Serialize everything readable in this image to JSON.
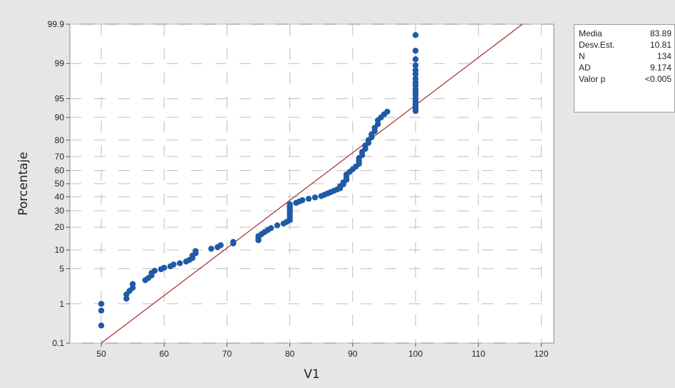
{
  "chart_data": {
    "type": "scatter",
    "subtype": "normal-probability-plot",
    "xlabel": "V1",
    "ylabel": "Porcentaje",
    "xlim": [
      45,
      122
    ],
    "ylim_percent": [
      0.1,
      99.9
    ],
    "y_scale": "normal-probability",
    "x_ticks": [
      50,
      60,
      70,
      80,
      90,
      100,
      110,
      120
    ],
    "y_ticks": [
      0.1,
      1,
      5,
      10,
      20,
      30,
      40,
      50,
      60,
      70,
      80,
      90,
      95,
      99,
      99.9
    ],
    "grid": true,
    "gridline_style": "dashed",
    "marker": "filled-dot",
    "colors": {
      "points": "#1f5aa6",
      "fit_line": "#a52a2a",
      "plot_bg": "#ffffff",
      "page_bg": "#e6e6e6"
    },
    "fit_line": {
      "x": [
        50,
        117
      ],
      "y": [
        0.1,
        99.9
      ]
    },
    "points": [
      [
        50.0,
        0.3
      ],
      [
        50.0,
        0.7
      ],
      [
        50.0,
        1.0
      ],
      [
        54.0,
        1.3
      ],
      [
        54.0,
        1.6
      ],
      [
        54.5,
        1.9
      ],
      [
        55.0,
        2.2
      ],
      [
        55.0,
        2.6
      ],
      [
        57.0,
        3.1
      ],
      [
        57.5,
        3.4
      ],
      [
        58.0,
        3.8
      ],
      [
        58.0,
        4.2
      ],
      [
        58.5,
        4.6
      ],
      [
        59.5,
        4.9
      ],
      [
        60.0,
        5.2
      ],
      [
        61.0,
        5.5
      ],
      [
        61.5,
        5.9
      ],
      [
        62.5,
        6.2
      ],
      [
        63.5,
        6.6
      ],
      [
        64.0,
        7.0
      ],
      [
        64.5,
        7.5
      ],
      [
        64.5,
        8.2
      ],
      [
        65.0,
        8.9
      ],
      [
        65.0,
        9.6
      ],
      [
        67.5,
        10.4
      ],
      [
        68.5,
        11.0
      ],
      [
        69.0,
        11.7
      ],
      [
        71.0,
        12.4
      ],
      [
        71.0,
        13.0
      ],
      [
        75.0,
        13.7
      ],
      [
        75.0,
        14.5
      ],
      [
        75.0,
        15.5
      ],
      [
        75.5,
        16.5
      ],
      [
        76.0,
        17.5
      ],
      [
        76.5,
        18.5
      ],
      [
        77.0,
        19.5
      ],
      [
        78.0,
        21.0
      ],
      [
        79.0,
        22.0
      ],
      [
        79.5,
        23.0
      ],
      [
        80.0,
        24.0
      ],
      [
        80.0,
        25.5
      ],
      [
        80.0,
        27.0
      ],
      [
        80.0,
        28.5
      ],
      [
        80.0,
        30.0
      ],
      [
        80.0,
        31.5
      ],
      [
        80.0,
        33.0
      ],
      [
        80.0,
        34.5
      ],
      [
        81.0,
        35.5
      ],
      [
        81.5,
        36.5
      ],
      [
        82.0,
        37.5
      ],
      [
        83.0,
        38.5
      ],
      [
        84.0,
        39.5
      ],
      [
        85.0,
        40.5
      ],
      [
        85.5,
        41.5
      ],
      [
        86.0,
        42.5
      ],
      [
        86.5,
        43.5
      ],
      [
        87.0,
        44.5
      ],
      [
        87.5,
        45.5
      ],
      [
        88.0,
        46.5
      ],
      [
        88.0,
        48.0
      ],
      [
        88.5,
        49.5
      ],
      [
        88.5,
        51.0
      ],
      [
        89.0,
        53.0
      ],
      [
        89.0,
        55.0
      ],
      [
        89.0,
        57.0
      ],
      [
        89.5,
        59.0
      ],
      [
        90.0,
        61.0
      ],
      [
        90.5,
        63.0
      ],
      [
        91.0,
        65.0
      ],
      [
        91.0,
        67.0
      ],
      [
        91.0,
        69.0
      ],
      [
        91.5,
        71.0
      ],
      [
        91.5,
        73.0
      ],
      [
        92.0,
        75.0
      ],
      [
        92.0,
        77.0
      ],
      [
        92.5,
        78.5
      ],
      [
        92.5,
        80.0
      ],
      [
        93.0,
        81.5
      ],
      [
        93.0,
        83.0
      ],
      [
        93.5,
        84.5
      ],
      [
        93.5,
        86.0
      ],
      [
        94.0,
        87.5
      ],
      [
        94.0,
        89.0
      ],
      [
        94.5,
        90.0
      ],
      [
        95.0,
        91.0
      ],
      [
        95.5,
        91.8
      ],
      [
        100.0,
        92.0
      ],
      [
        100.0,
        92.6
      ],
      [
        100.0,
        93.2
      ],
      [
        100.0,
        93.8
      ],
      [
        100.0,
        94.4
      ],
      [
        100.0,
        95.0
      ],
      [
        100.0,
        95.6
      ],
      [
        100.0,
        96.1
      ],
      [
        100.0,
        96.6
      ],
      [
        100.0,
        97.1
      ],
      [
        100.0,
        97.5
      ],
      [
        100.0,
        97.9
      ],
      [
        100.0,
        98.3
      ],
      [
        100.0,
        98.6
      ],
      [
        100.0,
        98.9
      ],
      [
        100.0,
        99.2
      ],
      [
        100.0,
        99.5
      ],
      [
        100.0,
        99.8
      ]
    ]
  },
  "stats": {
    "rows": [
      {
        "name": "Media",
        "value": "83.89"
      },
      {
        "name": "Desv.Est.",
        "value": "10.81"
      },
      {
        "name": "N",
        "value": "134"
      },
      {
        "name": "AD",
        "value": "9.174"
      },
      {
        "name": "Valor p",
        "value": "<0.005"
      }
    ]
  }
}
